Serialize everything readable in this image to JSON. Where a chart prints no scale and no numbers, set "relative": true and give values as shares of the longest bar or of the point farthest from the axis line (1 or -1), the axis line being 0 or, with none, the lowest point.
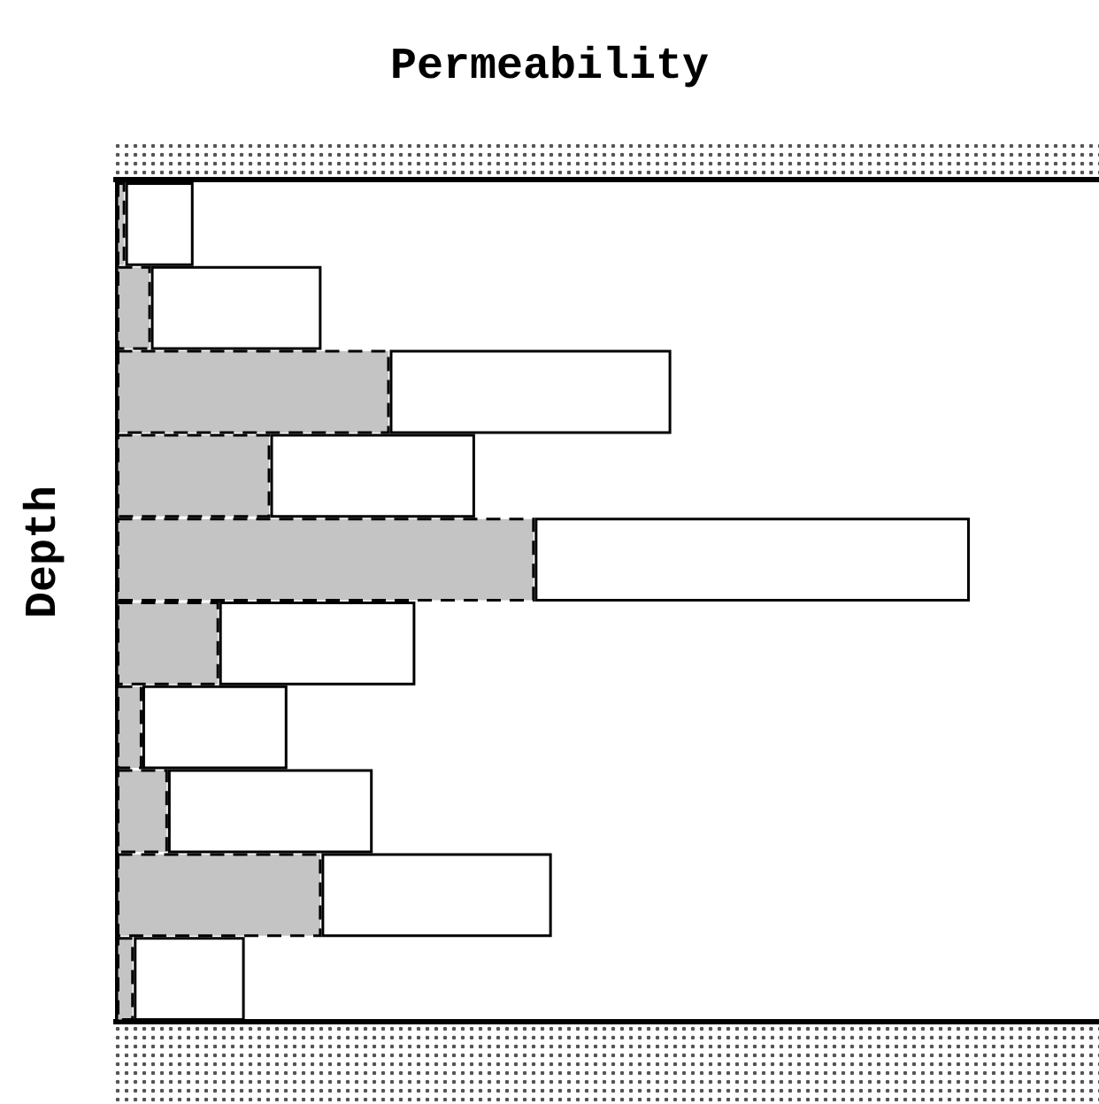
{
  "chart_data": {
    "type": "bar",
    "orientation": "horizontal",
    "relative": true,
    "stacked": true,
    "xlabel": "Permeability",
    "ylabel": "Depth",
    "categories": [
      null,
      null,
      null,
      null,
      null,
      null,
      null,
      null,
      null,
      null
    ],
    "series": [
      {
        "color": "#c4c4c4",
        "line_style": "dashed",
        "values": [
          0.01,
          0.04,
          0.32,
          0.18,
          0.49,
          0.12,
          0.03,
          0.06,
          0.24,
          0.02
        ]
      },
      {
        "color": "#ffffff",
        "line_style": "solid",
        "values": [
          0.08,
          0.2,
          0.33,
          0.24,
          0.51,
          0.23,
          0.17,
          0.24,
          0.27,
          0.13
        ]
      }
    ]
  }
}
